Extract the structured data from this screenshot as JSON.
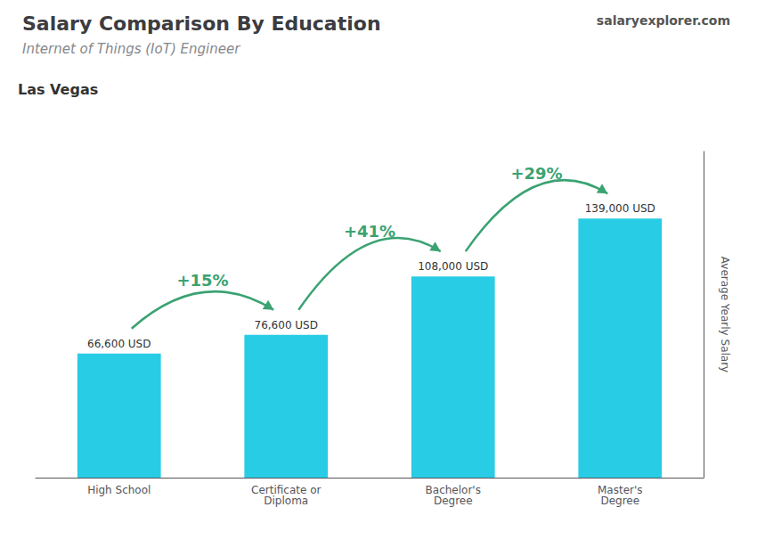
{
  "chart_data": {
    "type": "bar",
    "title": "Salary Comparison By Education",
    "subtitle": "Internet of Things (IoT) Engineer",
    "annotations": [
      "Las Vegas",
      "salaryexplorer.com"
    ],
    "ylabel": "Average Yearly Salary",
    "categories": [
      "High School",
      "Certificate or\nDiploma",
      "Bachelor's\nDegree",
      "Master's\nDegree"
    ],
    "values": [
      66600,
      76600,
      108000,
      139000
    ],
    "value_labels": [
      "66,600 USD",
      "76,600 USD",
      "108,000 USD",
      "139,000 USD"
    ],
    "data_labels": true,
    "change_labels": [
      "+15%",
      "+41%",
      "+29%"
    ],
    "color": "#29cce5",
    "ylim": [
      0,
      175000
    ],
    "grid": false,
    "tick_labels": "x"
  }
}
